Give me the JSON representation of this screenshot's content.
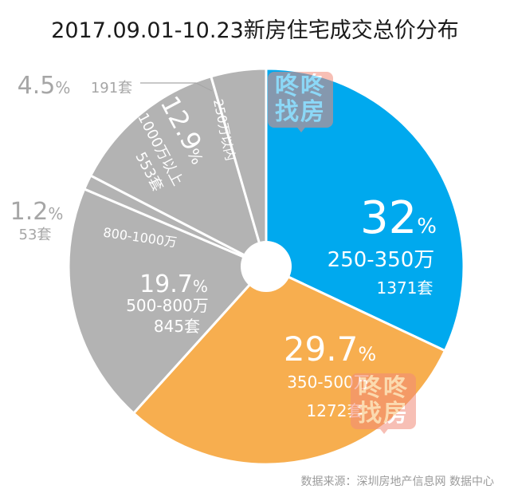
{
  "title": "2017.09.01-10.23新房住宅成交总价分布",
  "source": "数据来源：深圳房地产信息网 数据中心",
  "watermark": {
    "line1": "咚咚",
    "line2": "找房"
  },
  "colors": {
    "blue": "#00a9ee",
    "orange": "#f7ae4f",
    "gray": "#b3b3b3",
    "label_gray": "#a6a6a6"
  },
  "chart_data": {
    "type": "pie",
    "segments": [
      {
        "category": "250-350万",
        "percent": "32",
        "count": "1371套",
        "color": "#00a9ee"
      },
      {
        "category": "350-500万",
        "percent": "29.7",
        "count": "1272套",
        "color": "#f7ae4f"
      },
      {
        "category": "500-800万",
        "percent": "19.7",
        "count": "845套",
        "color": "#b3b3b3"
      },
      {
        "category": "800-1000万",
        "percent": "1.2",
        "count": "53套",
        "color": "#b3b3b3"
      },
      {
        "category": "1000万以上",
        "percent": "12.9",
        "count": "553套",
        "color": "#b3b3b3"
      },
      {
        "category": "250万以内",
        "percent": "4.5",
        "count": "191套",
        "color": "#b3b3b3"
      }
    ],
    "percent_sign": "%"
  }
}
